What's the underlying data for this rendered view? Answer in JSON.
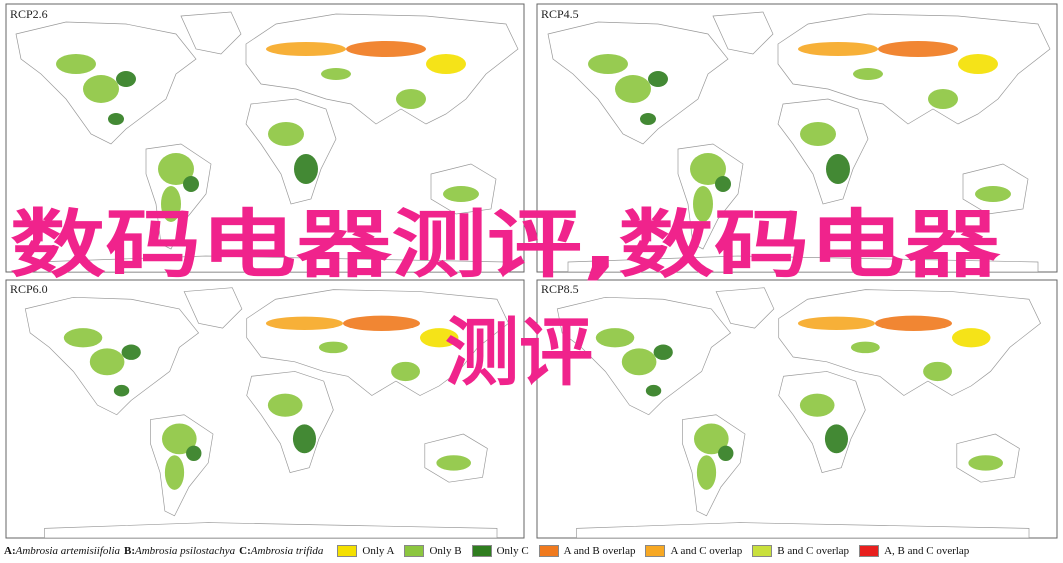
{
  "panels": [
    {
      "label": "RCP2.6"
    },
    {
      "label": "RCP4.5"
    },
    {
      "label": "RCP6.0"
    },
    {
      "label": "RCP8.5"
    }
  ],
  "legend": {
    "species": [
      {
        "letter": "A:",
        "name": "Ambrosia artemisiifolia"
      },
      {
        "letter": "B:",
        "name": "Ambrosia psilostachya"
      },
      {
        "letter": "C:",
        "name": "Ambrosia trifida"
      }
    ],
    "items": [
      {
        "label": "Only A",
        "color": "#f4e000"
      },
      {
        "label": "Only B",
        "color": "#8cc63f"
      },
      {
        "label": "Only C",
        "color": "#2f7d1f"
      },
      {
        "label": "A and B overlap",
        "color": "#f07a1e"
      },
      {
        "label": "A and C overlap",
        "color": "#f7a823"
      },
      {
        "label": "B and C overlap",
        "color": "#c9e03c"
      },
      {
        "label": "A, B and C overlap",
        "color": "#e8201e"
      }
    ]
  },
  "overlay": {
    "lines": [
      "数码电器测评,数码电器",
      "测评"
    ]
  }
}
